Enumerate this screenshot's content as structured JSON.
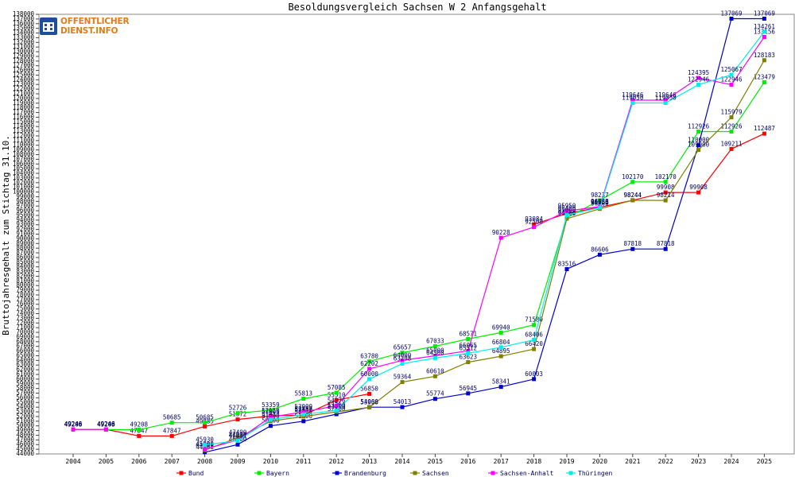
{
  "logo": {
    "line1": "OFFENTLICHER",
    "line2": "DIENST.INFO",
    "icon": "building-icon"
  },
  "chart_data": {
    "type": "line",
    "title": "Besoldungsvergleich Sachsen W 2 Anfangsgehalt",
    "xlabel": "",
    "ylabel": "Bruttojahresgehalt zum Stichtag 31.10.",
    "ylim": [
      44000,
      138000
    ],
    "ytick_step": 1000,
    "grid": false,
    "legend_position": "bottom",
    "categories": [
      "2004",
      "2005",
      "2006",
      "2007",
      "2008",
      "2009",
      "2010",
      "2011",
      "2012",
      "2013",
      "2014",
      "2015",
      "2016",
      "2017",
      "2018",
      "2019",
      "2020",
      "2021",
      "2022",
      "2023",
      "2024",
      "2025"
    ],
    "series": [
      {
        "name": "Bund",
        "color": "#ff0000",
        "values": [
          49246,
          49246,
          47847,
          47847,
          49885,
          51372,
          52150,
          52300,
          55510,
          56850,
          null,
          null,
          null,
          null,
          93084,
          95400,
          96750,
          98244,
          99908,
          99908,
          109211,
          112487
        ]
      },
      {
        "name": "Bayern",
        "color": "#00ee00",
        "values": [
          49208,
          49208,
          49208,
          50685,
          50685,
          52726,
          53359,
          55813,
          57085,
          63780,
          65657,
          67033,
          68571,
          69940,
          71580,
          94500,
          98237,
          102170,
          102170,
          112926,
          112926,
          123479
        ]
      },
      {
        "name": "Brandenburg",
        "color": "#0000cc",
        "values": [
          null,
          null,
          null,
          null,
          44361,
          46000,
          50000,
          51000,
          52500,
          54000,
          54013,
          55774,
          56945,
          58341,
          60003,
          83516,
          86606,
          87818,
          87818,
          110000,
          137069,
          137069
        ]
      },
      {
        "name": "Sachsen",
        "color": "#808000",
        "values": [
          49246,
          49246,
          null,
          null,
          44800,
          47490,
          51000,
          52000,
          53000,
          53958,
          59364,
          60610,
          63623,
          64895,
          66420,
          94300,
          96400,
          98244,
          98214,
          109000,
          115979,
          128183
        ]
      },
      {
        "name": "Sachsen-Anhalt",
        "color": "#ff00ff",
        "values": [
          49246,
          49246,
          null,
          null,
          45000,
          47000,
          51865,
          53000,
          54276,
          62202,
          64000,
          65000,
          66065,
          90228,
          92500,
          95950,
          96888,
          119646,
          119646,
          124395,
          122946,
          133156
        ]
      },
      {
        "name": "Thüringen",
        "color": "#00eeee",
        "values": [
          null,
          null,
          null,
          null,
          45930,
          46831,
          51313,
          52457,
          53300,
          60000,
          63298,
          64500,
          65512,
          66804,
          68406,
          95060,
          96658,
          119050,
          119050,
          122946,
          125067,
          134261
        ]
      }
    ]
  }
}
